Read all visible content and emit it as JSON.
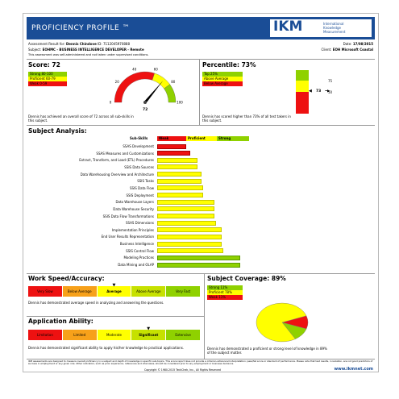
{
  "header": {
    "title": "PROFICIENCY PROFILE ™",
    "logo_text": "IKM",
    "logo_sub": [
      "International",
      "Knowledge",
      "Measurement"
    ]
  },
  "meta": {
    "assessment_prefix": "Assessment Result for:",
    "candidate": "Dennis Chindove",
    "id_label": "ID: 7112045970888",
    "date_label": "Date:",
    "date": "17/08/2015",
    "subject_label": "Subject:",
    "subject": "EOHMC - BUSINESS INTELLIGENCE DEVELOPER - Remote",
    "client_label": "Client:",
    "client": "EOH Microsoft Coastal",
    "note": "This assessment was self-administered and not taken under supervised conditions."
  },
  "score": {
    "title": "Score: 72",
    "legend": [
      {
        "label": "Strong 80-100",
        "color": "#8fd100"
      },
      {
        "label": "Proficient 60-79",
        "color": "#ffff00"
      },
      {
        "label": "Weak 0-59",
        "color": "#ee1111"
      }
    ],
    "gauge_ticks": [
      "0",
      "20",
      "40",
      "60",
      "80",
      "100"
    ],
    "value": 72,
    "value_label": "72",
    "text": "Dennis has achieved an overall score of 72 across all sub-skills in this subject."
  },
  "percentile": {
    "title": "Percentile: 73%",
    "legend": [
      {
        "label": "Top 25%",
        "color": "#8fd100"
      },
      {
        "label": "Above Average",
        "color": "#ffff00"
      },
      {
        "label": "Below Average",
        "color": "#ee1111"
      }
    ],
    "marker_label": "73",
    "scale_labels": [
      "75",
      "50"
    ],
    "value": 73,
    "text": "Dennis has scored higher than 73% of all test takers in this subject."
  },
  "subject_analysis": {
    "title": "Subject Analysis:",
    "columns": [
      "Sub-Skills",
      "Weak",
      "Proficient",
      "Strong"
    ],
    "skills": [
      {
        "name": "SSAS Development",
        "value": 0.32,
        "level": "weak"
      },
      {
        "name": "SSAS Measures and Customizations",
        "value": 0.36,
        "level": "weak"
      },
      {
        "name": "Extract, Transform, and Load (ETL) Procedures",
        "value": 0.44,
        "level": "proficient"
      },
      {
        "name": "SSIS Data Sources",
        "value": 0.44,
        "level": "proficient"
      },
      {
        "name": "Data Warehousing Overview and Architecture",
        "value": 0.48,
        "level": "proficient"
      },
      {
        "name": "SSIS Tasks",
        "value": 0.48,
        "level": "proficient"
      },
      {
        "name": "SSIS Data Flow",
        "value": 0.5,
        "level": "proficient"
      },
      {
        "name": "SSIS Deployment",
        "value": 0.5,
        "level": "proficient"
      },
      {
        "name": "Data Warehouse Layers",
        "value": 0.62,
        "level": "proficient"
      },
      {
        "name": "Data Warehouse Security",
        "value": 0.62,
        "level": "proficient"
      },
      {
        "name": "SSIS Data Flow Transformations",
        "value": 0.62,
        "level": "proficient"
      },
      {
        "name": "SSAS Dimensions",
        "value": 0.64,
        "level": "proficient"
      },
      {
        "name": "Implementation Principles",
        "value": 0.7,
        "level": "proficient"
      },
      {
        "name": "End User Results Representation",
        "value": 0.7,
        "level": "proficient"
      },
      {
        "name": "Business Intelligence",
        "value": 0.7,
        "level": "proficient"
      },
      {
        "name": "SSIS Control Flow",
        "value": 0.72,
        "level": "proficient"
      },
      {
        "name": "Modeling Practices",
        "value": 0.9,
        "level": "strong"
      },
      {
        "name": "Data Mining and OLAP",
        "value": 0.9,
        "level": "strong"
      }
    ]
  },
  "work_speed": {
    "title": "Work Speed/Accuracy:",
    "scale": [
      {
        "label": "Very Slow",
        "color": "#ee1111"
      },
      {
        "label": "Below Average",
        "color": "#f7a11a"
      },
      {
        "label": "Average",
        "color": "#ffff00"
      },
      {
        "label": "Above Average",
        "color": "#c6e100"
      },
      {
        "label": "Very Fast",
        "color": "#8fd100"
      }
    ],
    "selected": "Average",
    "text": "Dennis has demonstrated average speed in analyzing and answering the questions."
  },
  "application": {
    "title": "Application Ability:",
    "scale": [
      {
        "label": "Limitation",
        "color": "#ee1111"
      },
      {
        "label": "Limited",
        "color": "#f7a11a"
      },
      {
        "label": "Moderate",
        "color": "#ffff00"
      },
      {
        "label": "Significant",
        "color": "#c6e100"
      },
      {
        "label": "Extensive",
        "color": "#8fd100"
      }
    ],
    "selected": "Significant",
    "text": "Dennis has demonstrated significant ability to apply his/her knowledge to practical applications."
  },
  "coverage": {
    "title": "Subject Coverage: 89%",
    "legend": [
      {
        "label": "Strong 11%",
        "color": "#8fd100"
      },
      {
        "label": "Proficient 78%",
        "color": "#ffff00"
      },
      {
        "label": "Weak 11%",
        "color": "#ee1111"
      }
    ],
    "slices": [
      {
        "label": "Strong",
        "value": 11,
        "color": "#8fd100"
      },
      {
        "label": "Proficient",
        "value": 78,
        "color": "#ffff00"
      },
      {
        "label": "Weak",
        "value": 11,
        "color": "#ee1111"
      }
    ],
    "text": "Dennis has demonstrated a proficient or strong level of knowledge in 89% of the subject matter."
  },
  "footer": {
    "disclaimer": "IKM assessments are designed to measure overall proficiency in a subject and depth of knowledge in specific sub-topics. This score report does not provide a criterion-referenced interpretation; pass/fail score or standard of performance. Please note that test results, in isolation, are not good predictors of success in employment or any given role. Other indicators, such as prior experience, references and interviews, should be considered prior to any employment or business decisions.",
    "copyright": "Copyright © 1980-2015 TeckChek, Inc., All Rights Reserved",
    "url": "www.ikmnet.com"
  }
}
